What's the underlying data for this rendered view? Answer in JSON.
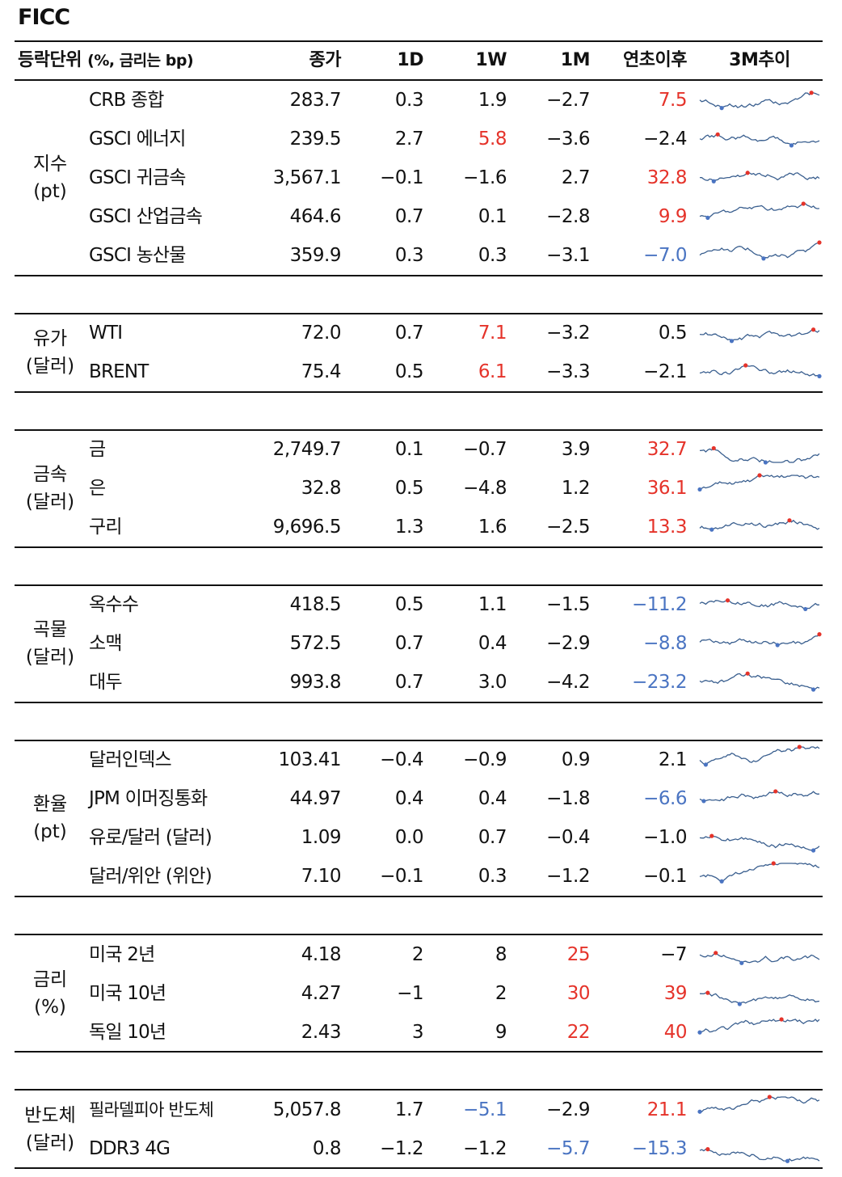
{
  "title": "FICC",
  "header": {
    "unit_label": "등락단위",
    "unit_sub": "(%, 금리는 bp)",
    "close": "종가",
    "d1": "1D",
    "w1": "1W",
    "m1": "1M",
    "ytd": "연초이후",
    "trend": "3M추이"
  },
  "colors": {
    "up": "#e5332a",
    "down": "#4a74c2",
    "line": "#3a5f8f",
    "high_marker": "#e5332a",
    "low_marker": "#4a74c2"
  },
  "sections": [
    {
      "group": [
        "지수",
        "(pt)"
      ],
      "rows": [
        {
          "name": "CRB 종합",
          "close": "283.7",
          "d1": "0.3",
          "w1": "1.9",
          "m1": "−2.7",
          "ytd": "7.5",
          "colors": {
            "ytd": "red"
          }
        },
        {
          "name": "GSCI 에너지",
          "close": "239.5",
          "d1": "2.7",
          "w1": "5.8",
          "m1": "−3.6",
          "ytd": "−2.4",
          "colors": {
            "w1": "red"
          }
        },
        {
          "name": "GSCI 귀금속",
          "close": "3,567.1",
          "d1": "−0.1",
          "w1": "−1.6",
          "m1": "2.7",
          "ytd": "32.8",
          "colors": {
            "ytd": "red"
          }
        },
        {
          "name": "GSCI 산업금속",
          "close": "464.6",
          "d1": "0.7",
          "w1": "0.1",
          "m1": "−2.8",
          "ytd": "9.9",
          "colors": {
            "ytd": "red"
          }
        },
        {
          "name": "GSCI 농산물",
          "close": "359.9",
          "d1": "0.3",
          "w1": "0.3",
          "m1": "−3.1",
          "ytd": "−7.0",
          "colors": {
            "ytd": "blue"
          }
        }
      ]
    },
    {
      "group": [
        "유가",
        "(달러)"
      ],
      "rows": [
        {
          "name": "WTI",
          "close": "72.0",
          "d1": "0.7",
          "w1": "7.1",
          "m1": "−3.2",
          "ytd": "0.5",
          "colors": {
            "w1": "red"
          }
        },
        {
          "name": "BRENT",
          "close": "75.4",
          "d1": "0.5",
          "w1": "6.1",
          "m1": "−3.3",
          "ytd": "−2.1",
          "colors": {
            "w1": "red"
          }
        }
      ]
    },
    {
      "group": [
        "금속",
        "(달러)"
      ],
      "rows": [
        {
          "name": "금",
          "close": "2,749.7",
          "d1": "0.1",
          "w1": "−0.7",
          "m1": "3.9",
          "ytd": "32.7",
          "colors": {
            "ytd": "red"
          }
        },
        {
          "name": "은",
          "close": "32.8",
          "d1": "0.5",
          "w1": "−4.8",
          "m1": "1.2",
          "ytd": "36.1",
          "colors": {
            "ytd": "red"
          }
        },
        {
          "name": "구리",
          "close": "9,696.5",
          "d1": "1.3",
          "w1": "1.6",
          "m1": "−2.5",
          "ytd": "13.3",
          "colors": {
            "ytd": "red"
          }
        }
      ]
    },
    {
      "group": [
        "곡물",
        "(달러)"
      ],
      "rows": [
        {
          "name": "옥수수",
          "close": "418.5",
          "d1": "0.5",
          "w1": "1.1",
          "m1": "−1.5",
          "ytd": "−11.2",
          "colors": {
            "ytd": "blue"
          }
        },
        {
          "name": "소맥",
          "close": "572.5",
          "d1": "0.7",
          "w1": "0.4",
          "m1": "−2.9",
          "ytd": "−8.8",
          "colors": {
            "ytd": "blue"
          }
        },
        {
          "name": "대두",
          "close": "993.8",
          "d1": "0.7",
          "w1": "3.0",
          "m1": "−4.2",
          "ytd": "−23.2",
          "colors": {
            "ytd": "blue"
          }
        }
      ]
    },
    {
      "group": [
        "환율",
        "(pt)"
      ],
      "rows": [
        {
          "name": "달러인덱스",
          "close": "103.41",
          "d1": "−0.4",
          "w1": "−0.9",
          "m1": "0.9",
          "ytd": "2.1",
          "colors": {}
        },
        {
          "name": "JPM 이머징통화",
          "close": "44.97",
          "d1": "0.4",
          "w1": "0.4",
          "m1": "−1.8",
          "ytd": "−6.6",
          "colors": {
            "ytd": "blue"
          }
        },
        {
          "name": "유로/달러 (달러)",
          "close": "1.09",
          "d1": "0.0",
          "w1": "0.7",
          "m1": "−0.4",
          "ytd": "−1.0",
          "colors": {}
        },
        {
          "name": "달러/위안 (위안)",
          "close": "7.10",
          "d1": "−0.1",
          "w1": "0.3",
          "m1": "−1.2",
          "ytd": "−0.1",
          "colors": {}
        }
      ]
    },
    {
      "group": [
        "금리",
        "(%)"
      ],
      "rows": [
        {
          "name": "미국 2년",
          "close": "4.18",
          "d1": "2",
          "w1": "8",
          "m1": "25",
          "ytd": "−7",
          "colors": {
            "m1": "red"
          }
        },
        {
          "name": "미국 10년",
          "close": "4.27",
          "d1": "−1",
          "w1": "2",
          "m1": "30",
          "ytd": "39",
          "colors": {
            "m1": "red",
            "ytd": "red"
          }
        },
        {
          "name": "독일 10년",
          "close": "2.43",
          "d1": "3",
          "w1": "9",
          "m1": "22",
          "ytd": "40",
          "colors": {
            "m1": "red",
            "ytd": "red"
          }
        }
      ]
    },
    {
      "group": [
        "반도체",
        "(달러)"
      ],
      "rows": [
        {
          "name": "필라델피아 반도체",
          "close": "5,057.8",
          "d1": "1.7",
          "w1": "−5.1",
          "m1": "−2.9",
          "ytd": "21.1",
          "colors": {
            "w1": "blue",
            "ytd": "red"
          },
          "small": true
        },
        {
          "name": "DDR3 4G",
          "close": "0.8",
          "d1": "−1.2",
          "w1": "−1.2",
          "m1": "−5.7",
          "ytd": "−15.3",
          "colors": {
            "m1": "blue",
            "ytd": "blue"
          }
        }
      ]
    }
  ]
}
